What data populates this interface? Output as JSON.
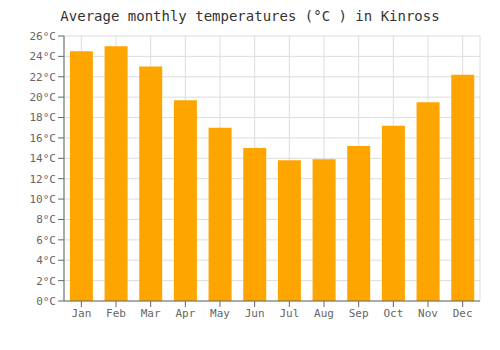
{
  "chart_data": {
    "type": "bar",
    "title": "Average monthly temperatures (°C ) in Kinross",
    "categories": [
      "Jan",
      "Feb",
      "Mar",
      "Apr",
      "May",
      "Jun",
      "Jul",
      "Aug",
      "Sep",
      "Oct",
      "Nov",
      "Dec"
    ],
    "values": [
      24.5,
      25.0,
      23.0,
      19.7,
      17.0,
      15.0,
      13.8,
      13.9,
      15.2,
      17.2,
      19.5,
      22.2
    ],
    "color": "#FFA500",
    "ylim": [
      0,
      26
    ],
    "yticks": [
      {
        "value": 0,
        "label": "0°C"
      },
      {
        "value": 2,
        "label": "2°C"
      },
      {
        "value": 4,
        "label": "4°C"
      },
      {
        "value": 6,
        "label": "6°C"
      },
      {
        "value": 8,
        "label": "8°C"
      },
      {
        "value": 10,
        "label": "10°C"
      },
      {
        "value": 12,
        "label": "12°C"
      },
      {
        "value": 14,
        "label": "14°C"
      },
      {
        "value": 16,
        "label": "16°C"
      },
      {
        "value": 18,
        "label": "18°C"
      },
      {
        "value": 20,
        "label": "20°C"
      },
      {
        "value": 22,
        "label": "22°C"
      },
      {
        "value": 24,
        "label": "24°C"
      },
      {
        "value": 26,
        "label": "26°C"
      }
    ],
    "grid": true
  }
}
